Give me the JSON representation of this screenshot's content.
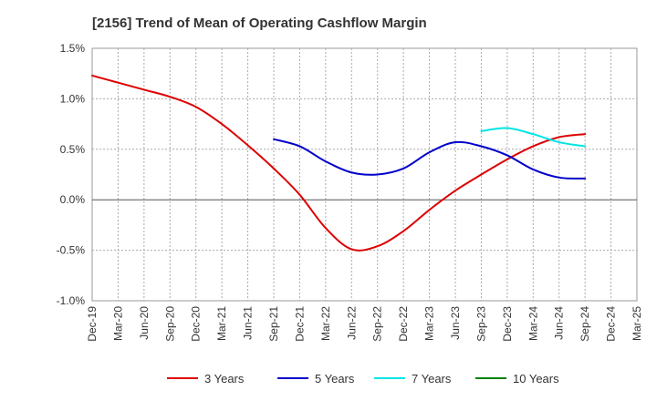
{
  "chart_data": {
    "type": "line",
    "title": "[2156]  Trend of Mean of Operating Cashflow Margin",
    "xlabel": "",
    "ylabel": "",
    "y_tick_labels": [
      "1.5%",
      "1.0%",
      "0.5%",
      "0.0%",
      "-0.5%",
      "-1.0%"
    ],
    "y_ticks": [
      1.5,
      1.0,
      0.5,
      0.0,
      -0.5,
      -1.0
    ],
    "ylim": [
      -1.0,
      1.5
    ],
    "x_tick_labels": [
      "Dec-19",
      "Mar-20",
      "Jun-20",
      "Sep-20",
      "Dec-20",
      "Mar-21",
      "Jun-21",
      "Sep-21",
      "Dec-21",
      "Mar-22",
      "Jun-22",
      "Sep-22",
      "Dec-22",
      "Mar-23",
      "Jun-23",
      "Sep-23",
      "Dec-23",
      "Mar-24",
      "Jun-24",
      "Sep-24",
      "Dec-24",
      "Mar-25"
    ],
    "grid": "dotted",
    "legend_position": "bottom",
    "series": [
      {
        "name": "3 Years",
        "color": "#dd0000",
        "values": [
          1.23,
          1.16,
          1.09,
          1.02,
          0.92,
          0.75,
          0.54,
          0.31,
          0.05,
          -0.28,
          -0.49,
          -0.46,
          -0.31,
          -0.1,
          0.09,
          0.25,
          0.4,
          0.53,
          0.62,
          0.65,
          null,
          null
        ]
      },
      {
        "name": "5 Years",
        "color": "#0000cc",
        "values": [
          null,
          null,
          null,
          null,
          null,
          null,
          null,
          0.6,
          0.53,
          0.38,
          0.27,
          0.25,
          0.31,
          0.47,
          0.57,
          0.53,
          0.44,
          0.3,
          0.22,
          0.21,
          null,
          null
        ]
      },
      {
        "name": "7 Years",
        "color": "#00e5e5",
        "values": [
          null,
          null,
          null,
          null,
          null,
          null,
          null,
          null,
          null,
          null,
          null,
          null,
          null,
          null,
          null,
          0.68,
          0.71,
          0.65,
          0.57,
          0.53,
          null,
          null
        ]
      },
      {
        "name": "10 Years",
        "color": "#008000",
        "values": [
          null,
          null,
          null,
          null,
          null,
          null,
          null,
          null,
          null,
          null,
          null,
          null,
          null,
          null,
          null,
          null,
          null,
          null,
          null,
          null,
          null,
          null
        ]
      }
    ]
  }
}
